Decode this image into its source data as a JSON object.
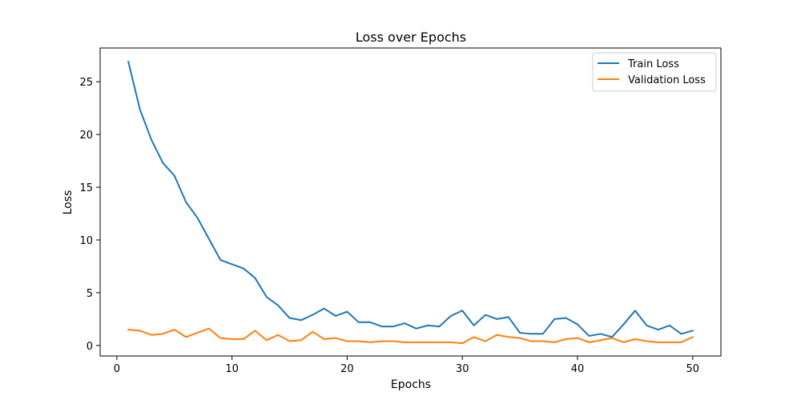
{
  "chart_data": {
    "type": "line",
    "title": "Loss over Epochs",
    "xlabel": "Epochs",
    "ylabel": "Loss",
    "xlim": [
      -1.45,
      52.45
    ],
    "ylim": [
      -1.0,
      28.2
    ],
    "x_ticks": [
      0,
      10,
      20,
      30,
      40,
      50
    ],
    "y_ticks": [
      0,
      5,
      10,
      15,
      20,
      25
    ],
    "x": [
      1,
      2,
      3,
      4,
      5,
      6,
      7,
      8,
      9,
      10,
      11,
      12,
      13,
      14,
      15,
      16,
      17,
      18,
      19,
      20,
      21,
      22,
      23,
      24,
      25,
      26,
      27,
      28,
      29,
      30,
      31,
      32,
      33,
      34,
      35,
      36,
      37,
      38,
      39,
      40,
      41,
      42,
      43,
      44,
      45,
      46,
      47,
      48,
      49,
      50
    ],
    "grid": false,
    "legend_position": "top-right",
    "series": [
      {
        "name": "Train Loss",
        "color": "#1f77b4",
        "values": [
          26.9,
          22.4,
          19.5,
          17.3,
          16.1,
          13.6,
          12.1,
          10.1,
          8.1,
          7.7,
          7.3,
          6.4,
          4.6,
          3.8,
          2.6,
          2.4,
          2.9,
          3.5,
          2.8,
          3.2,
          2.2,
          2.2,
          1.8,
          1.8,
          2.1,
          1.6,
          1.9,
          1.8,
          2.8,
          3.3,
          1.9,
          2.9,
          2.5,
          2.7,
          1.2,
          1.1,
          1.1,
          2.5,
          2.6,
          2.0,
          0.9,
          1.1,
          0.8,
          2.0,
          3.3,
          1.9,
          1.5,
          1.9,
          1.1,
          1.4
        ]
      },
      {
        "name": "Validation Loss",
        "color": "#ff7f0e",
        "values": [
          1.5,
          1.4,
          1.0,
          1.1,
          1.5,
          0.8,
          1.2,
          1.6,
          0.7,
          0.6,
          0.6,
          1.4,
          0.5,
          1.0,
          0.4,
          0.5,
          1.3,
          0.6,
          0.7,
          0.4,
          0.4,
          0.3,
          0.4,
          0.4,
          0.3,
          0.3,
          0.3,
          0.3,
          0.3,
          0.2,
          0.8,
          0.4,
          1.0,
          0.8,
          0.7,
          0.4,
          0.4,
          0.3,
          0.6,
          0.7,
          0.3,
          0.5,
          0.7,
          0.3,
          0.6,
          0.4,
          0.3,
          0.3,
          0.3,
          0.8
        ]
      }
    ]
  }
}
